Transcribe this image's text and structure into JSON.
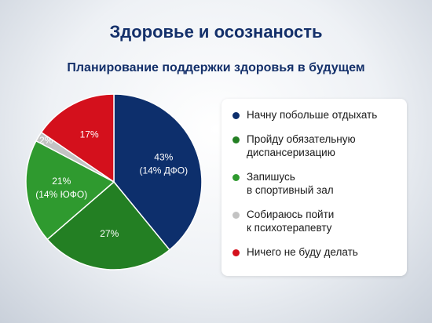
{
  "chart_data": {
    "type": "pie",
    "title": "Здоровье и осознаность",
    "subtitle": "Планирование поддержки здоровья в будущем",
    "categories": [
      "Начну побольше отдыхать",
      "Пройду обязательную\nдиспансеризацию",
      "Запишусь\nв спортивный зал",
      "Собираюсь пойти\nк психотерапевту",
      "Ничего не буду делать"
    ],
    "values": [
      43,
      27,
      21,
      2,
      17
    ],
    "value_labels": [
      "43%",
      "27%",
      "21%",
      "2%",
      "17%"
    ],
    "sublabels": [
      "(14% ДФО)",
      null,
      "(14% ЮФО)",
      null,
      null
    ],
    "colors": [
      "#0d2f6c",
      "#237f23",
      "#2f9a2f",
      "#c3c3c3",
      "#d4101c"
    ]
  }
}
